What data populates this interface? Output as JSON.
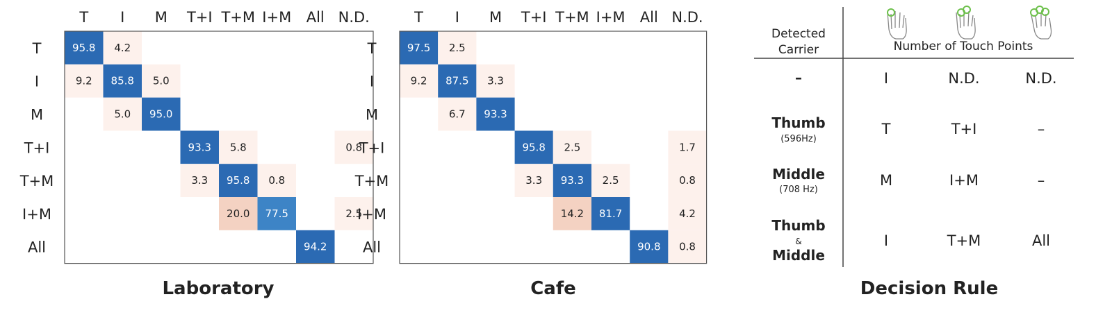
{
  "columns": [
    "T",
    "I",
    "M",
    "T+I",
    "T+M",
    "I+M",
    "All",
    "N.D."
  ],
  "rows": [
    "T",
    "I",
    "M",
    "T+I",
    "T+M",
    "I+M",
    "All"
  ],
  "colors": {
    "high": "#2b6ab3",
    "mid": "#3d84c6",
    "low_tint": "#fdf1ec",
    "mid_tint": "#f4d2c2",
    "frame": "#555555"
  },
  "chart_data": [
    {
      "type": "heatmap",
      "title": "Laboratory",
      "cells": [
        {
          "row": 0,
          "col": 0,
          "value": 95.8
        },
        {
          "row": 0,
          "col": 1,
          "value": 4.2
        },
        {
          "row": 1,
          "col": 0,
          "value": 9.2
        },
        {
          "row": 1,
          "col": 1,
          "value": 85.8
        },
        {
          "row": 1,
          "col": 2,
          "value": 5.0
        },
        {
          "row": 2,
          "col": 1,
          "value": 5.0
        },
        {
          "row": 2,
          "col": 2,
          "value": 95.0
        },
        {
          "row": 3,
          "col": 3,
          "value": 93.3
        },
        {
          "row": 3,
          "col": 4,
          "value": 5.8
        },
        {
          "row": 3,
          "col": 7,
          "value": 0.8
        },
        {
          "row": 4,
          "col": 3,
          "value": 3.3
        },
        {
          "row": 4,
          "col": 4,
          "value": 95.8
        },
        {
          "row": 4,
          "col": 5,
          "value": 0.8
        },
        {
          "row": 5,
          "col": 4,
          "value": 20.0
        },
        {
          "row": 5,
          "col": 5,
          "value": 77.5
        },
        {
          "row": 5,
          "col": 7,
          "value": 2.5
        },
        {
          "row": 6,
          "col": 6,
          "value": 94.2
        }
      ]
    },
    {
      "type": "heatmap",
      "title": "Cafe",
      "cells": [
        {
          "row": 0,
          "col": 0,
          "value": 97.5
        },
        {
          "row": 0,
          "col": 1,
          "value": 2.5
        },
        {
          "row": 1,
          "col": 0,
          "value": 9.2
        },
        {
          "row": 1,
          "col": 1,
          "value": 87.5
        },
        {
          "row": 1,
          "col": 2,
          "value": 3.3
        },
        {
          "row": 2,
          "col": 1,
          "value": 6.7
        },
        {
          "row": 2,
          "col": 2,
          "value": 93.3
        },
        {
          "row": 3,
          "col": 3,
          "value": 95.8
        },
        {
          "row": 3,
          "col": 4,
          "value": 2.5
        },
        {
          "row": 3,
          "col": 7,
          "value": 1.7
        },
        {
          "row": 4,
          "col": 3,
          "value": 3.3
        },
        {
          "row": 4,
          "col": 4,
          "value": 93.3
        },
        {
          "row": 4,
          "col": 5,
          "value": 2.5
        },
        {
          "row": 4,
          "col": 7,
          "value": 0.8
        },
        {
          "row": 5,
          "col": 4,
          "value": 14.2
        },
        {
          "row": 5,
          "col": 5,
          "value": 81.7
        },
        {
          "row": 5,
          "col": 7,
          "value": 4.2
        },
        {
          "row": 6,
          "col": 6,
          "value": 90.8
        },
        {
          "row": 6,
          "col": 7,
          "value": 0.8
        }
      ]
    }
  ],
  "decision_rule": {
    "title": "Decision Rule",
    "header_carrier_line1": "Detected",
    "header_carrier_line2": "Carrier",
    "header_touch": "Number of Touch Points",
    "hand_icons": [
      "one-finger-touch-icon",
      "two-finger-touch-icon",
      "three-finger-touch-icon"
    ],
    "rows": [
      {
        "carrier": "–",
        "freq": "",
        "cells": [
          "I",
          "N.D.",
          "N.D."
        ]
      },
      {
        "carrier": "Thumb",
        "freq": "(596Hz)",
        "cells": [
          "T",
          "T+I",
          "–"
        ]
      },
      {
        "carrier": "Middle",
        "freq": "(708 Hz)",
        "cells": [
          "M",
          "I+M",
          "–"
        ]
      },
      {
        "carrier": "Thumb",
        "amp": "&",
        "carrier2": "Middle",
        "cells": [
          "I",
          "T+M",
          "All"
        ]
      }
    ]
  }
}
